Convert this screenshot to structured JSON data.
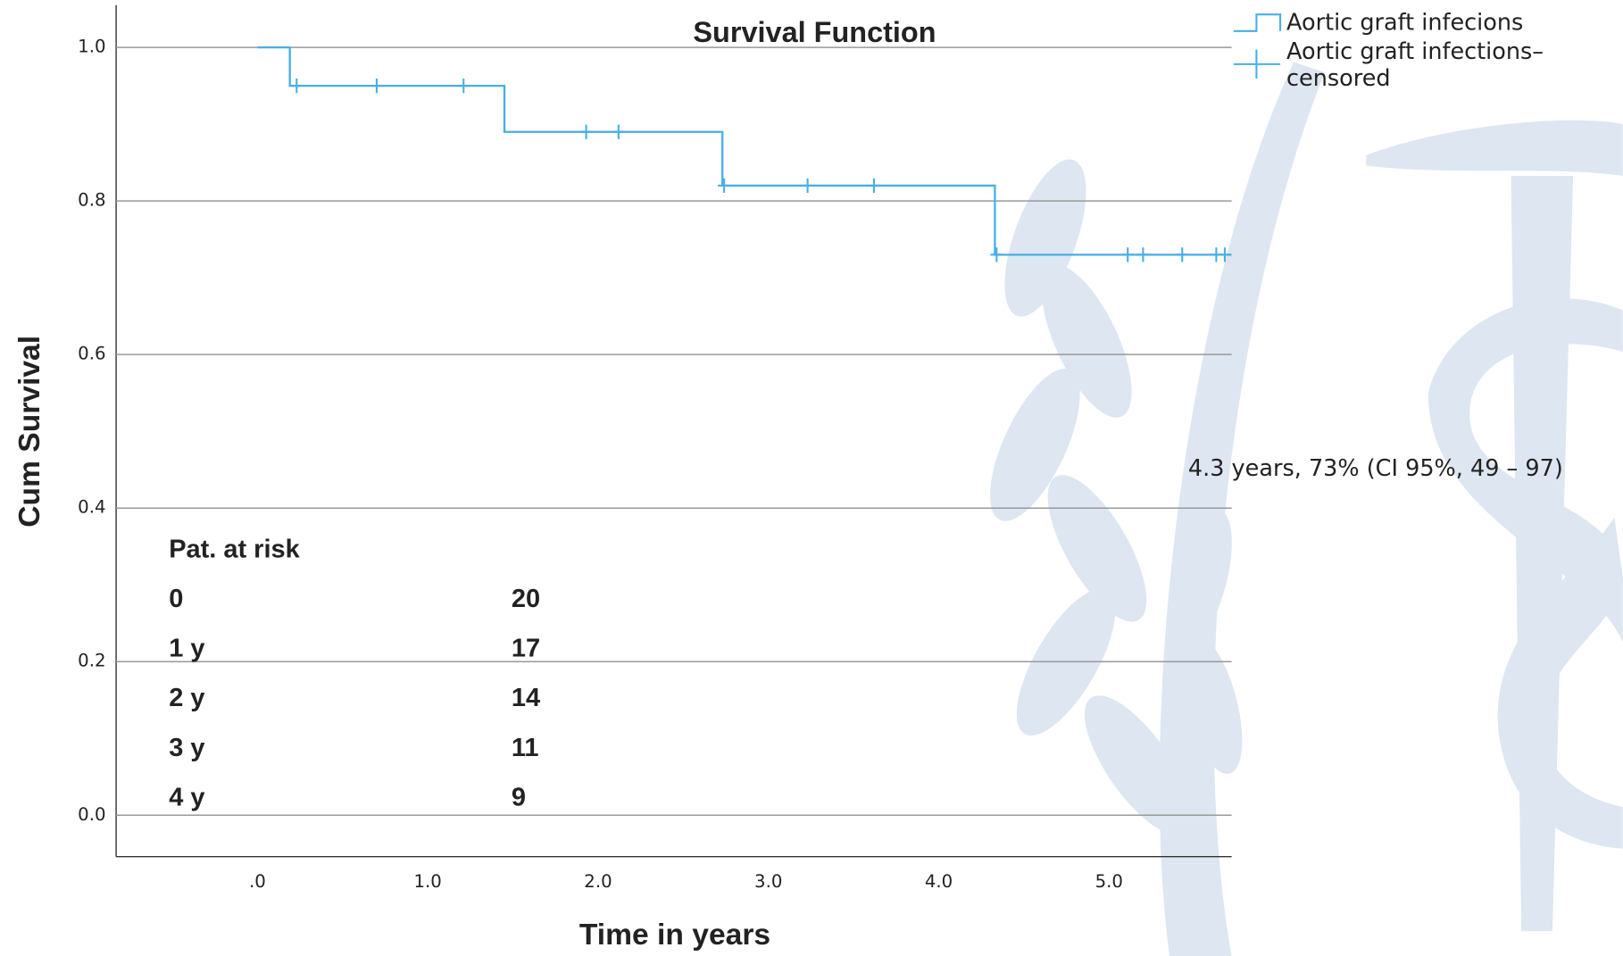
{
  "chart_data": {
    "type": "step",
    "title": "Survival Function",
    "x_label": "Time in years",
    "y_label": "Cum Survival",
    "xlim": [
      -0.83,
      5.72
    ],
    "ylim": [
      -0.054,
      1.055
    ],
    "xticks": [
      {
        "value": 0,
        "label": ".0"
      },
      {
        "value": 1,
        "label": "1.0"
      },
      {
        "value": 2,
        "label": "2.0"
      },
      {
        "value": 3,
        "label": "3.0"
      },
      {
        "value": 4,
        "label": "4.0"
      },
      {
        "value": 5,
        "label": "5.0"
      }
    ],
    "yticks": [
      {
        "value": 0,
        "label": "0.0"
      },
      0.2,
      0.4,
      0.6,
      0.8,
      {
        "value": 1,
        "label": "1.0"
      }
    ],
    "grid": true,
    "legend": "top-right",
    "series": [
      {
        "name": "Aortic graft infecions",
        "color": "#48aee6",
        "x": [
          0,
          0.19,
          1.45,
          2.73,
          4.33,
          5.72
        ],
        "values": [
          1.0,
          0.95,
          0.89,
          0.82,
          0.73,
          0.73
        ]
      },
      {
        "name": "Aortic graft infections–censored",
        "color": "#48aee6",
        "x": [
          0.23,
          0.7,
          1.21,
          1.93,
          2.12,
          2.74,
          3.23,
          3.62,
          4.34,
          5.11,
          5.2,
          5.43,
          5.63,
          5.68
        ],
        "values": [
          0.95,
          0.95,
          0.95,
          0.89,
          0.89,
          0.82,
          0.82,
          0.82,
          0.73,
          0.73,
          0.73,
          0.73,
          0.73,
          0.73
        ]
      }
    ],
    "annotation": "4.3 years, 73% (CI 95%, 49 – 97)",
    "risk_table": {
      "title": "Pat. at risk",
      "rows": [
        [
          "0",
          "20"
        ],
        [
          "1 y",
          "17"
        ],
        [
          "2 y",
          "14"
        ],
        [
          "3 y",
          "11"
        ],
        [
          "4 y",
          "9"
        ]
      ]
    }
  }
}
